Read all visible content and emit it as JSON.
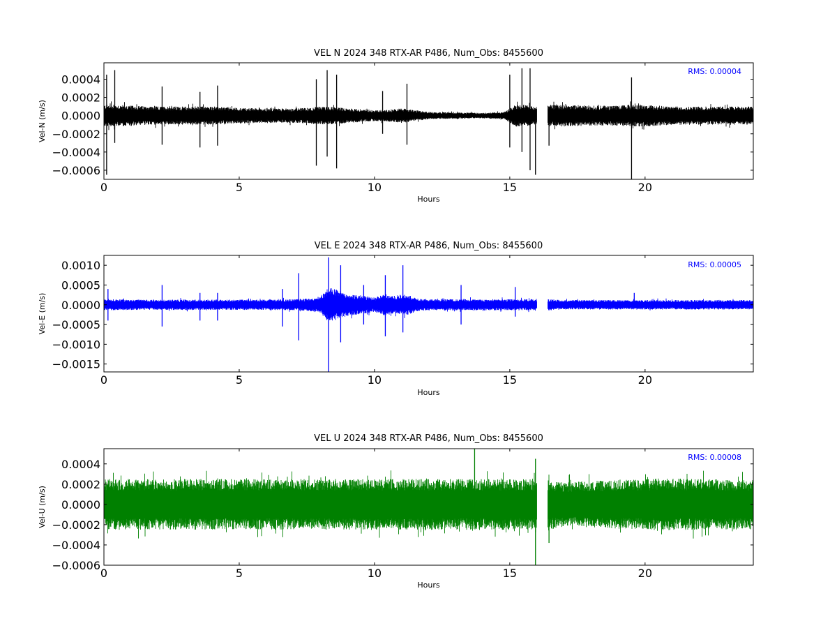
{
  "chart_data": [
    {
      "type": "line",
      "title": "VEL N 2024 348 RTX-AR  P486, Num_Obs: 8455600",
      "xlabel": "Hours",
      "ylabel": "Vel-N (m/s)",
      "xlim": [
        0,
        24
      ],
      "ylim": [
        -0.0007,
        0.00058
      ],
      "xticks": [
        0,
        5,
        10,
        15,
        20
      ],
      "xtick_labels": [
        "0",
        "5",
        "10",
        "15",
        "20"
      ],
      "yticks": [
        -0.0006,
        -0.0004,
        -0.0002,
        0.0,
        0.0002,
        0.0004
      ],
      "ytick_labels": [
        "−0.0006",
        "−0.0004",
        "−0.0002",
        "0.0000",
        "0.0002",
        "0.0004"
      ],
      "annotation": "RMS:  0.00004",
      "color": "#000000",
      "annotation_color": "#0000ff",
      "grid": false,
      "gap": [
        16.0,
        16.4
      ],
      "series": [
        {
          "x": [
            0,
            0.5,
            1,
            2,
            2.5,
            3,
            3.5,
            4,
            5,
            6,
            7,
            7.5,
            8,
            8.5,
            9,
            10,
            10.5,
            11,
            11.5,
            12,
            13,
            14,
            14.8,
            15.2,
            15.6,
            15.95,
            16.45,
            17,
            18,
            19,
            19.5,
            20,
            21,
            22,
            23,
            23.9
          ],
          "amp": [
            0.00012,
            0.00012,
            0.00011,
            0.0001,
            0.0001,
            0.0001,
            0.0001,
            0.0001,
            8.5e-05,
            8e-05,
            8e-05,
            8.5e-05,
            0.0001,
            9.5e-05,
            8e-05,
            6e-05,
            6.5e-05,
            8e-05,
            6e-05,
            4e-05,
            3.5e-05,
            3e-05,
            4e-05,
            0.00012,
            0.00012,
            9e-05,
            0.00012,
            0.00012,
            0.00011,
            0.00011,
            0.00012,
            0.00012,
            0.0001,
            0.0001,
            0.0001,
            0.0001
          ]
        }
      ],
      "spikes": [
        {
          "x": 0.1,
          "y": 0.00045
        },
        {
          "x": 0.1,
          "y": -0.00065
        },
        {
          "x": 0.4,
          "y": 0.0005
        },
        {
          "x": 0.4,
          "y": -0.0003
        },
        {
          "x": 2.15,
          "y": 0.00032
        },
        {
          "x": 2.15,
          "y": -0.00032
        },
        {
          "x": 3.55,
          "y": 0.00026
        },
        {
          "x": 3.55,
          "y": -0.00035
        },
        {
          "x": 4.2,
          "y": 0.00033
        },
        {
          "x": 4.2,
          "y": -0.00033
        },
        {
          "x": 7.85,
          "y": 0.0004
        },
        {
          "x": 7.85,
          "y": -0.00055
        },
        {
          "x": 8.25,
          "y": 0.0005
        },
        {
          "x": 8.25,
          "y": -0.00045
        },
        {
          "x": 8.6,
          "y": 0.00045
        },
        {
          "x": 8.6,
          "y": -0.00058
        },
        {
          "x": 10.3,
          "y": 0.00027
        },
        {
          "x": 10.3,
          "y": -0.0002
        },
        {
          "x": 11.2,
          "y": 0.00035
        },
        {
          "x": 11.2,
          "y": -0.00032
        },
        {
          "x": 15.0,
          "y": 0.00045
        },
        {
          "x": 15.0,
          "y": -0.00035
        },
        {
          "x": 15.45,
          "y": 0.00052
        },
        {
          "x": 15.45,
          "y": -0.0004
        },
        {
          "x": 15.75,
          "y": 0.00052
        },
        {
          "x": 15.75,
          "y": -0.0006
        },
        {
          "x": 15.95,
          "y": -0.00065
        },
        {
          "x": 16.45,
          "y": -0.00033
        },
        {
          "x": 19.5,
          "y": 0.00042
        },
        {
          "x": 19.5,
          "y": -0.0007
        }
      ]
    },
    {
      "type": "line",
      "title": "VEL E 2024 348 RTX-AR  P486, Num_Obs: 8455600",
      "xlabel": "Hours",
      "ylabel": "Vel-E (m/s)",
      "xlim": [
        0,
        24
      ],
      "ylim": [
        -0.0017,
        0.00125
      ],
      "xticks": [
        0,
        5,
        10,
        15,
        20
      ],
      "xtick_labels": [
        "0",
        "5",
        "10",
        "15",
        "20"
      ],
      "yticks": [
        -0.0015,
        -0.001,
        -0.0005,
        0.0,
        0.0005,
        0.001
      ],
      "ytick_labels": [
        "−0.0015",
        "−0.0010",
        "−0.0005",
        "0.0000",
        "0.0005",
        "0.0010"
      ],
      "annotation": "RMS:  0.00005",
      "color": "#0000ff",
      "annotation_color": "#0000ff",
      "grid": false,
      "gap": [
        16.0,
        16.4
      ],
      "series": [
        {
          "x": [
            0,
            1,
            2,
            3,
            4,
            5,
            6,
            7,
            7.5,
            8,
            8.3,
            8.6,
            9,
            9.5,
            10,
            10.4,
            10.8,
            11.2,
            11.6,
            12,
            13,
            14,
            15,
            15.95,
            16.45,
            17,
            18,
            19,
            20,
            21,
            22,
            23,
            23.9
          ],
          "amp": [
            0.00014,
            0.00013,
            0.00013,
            0.00013,
            0.00013,
            0.00013,
            0.00013,
            0.00014,
            0.00016,
            0.0002,
            0.00045,
            0.0004,
            0.00028,
            0.00024,
            0.00018,
            0.00028,
            0.00022,
            0.00026,
            0.00016,
            0.00014,
            0.00014,
            0.00014,
            0.00014,
            0.00014,
            0.00014,
            0.00012,
            0.00012,
            0.00012,
            0.00012,
            0.00012,
            0.00012,
            0.00012,
            0.00012
          ]
        }
      ],
      "spikes": [
        {
          "x": 0.15,
          "y": 0.0004
        },
        {
          "x": 0.15,
          "y": -0.0004
        },
        {
          "x": 2.15,
          "y": 0.0005
        },
        {
          "x": 2.15,
          "y": -0.00055
        },
        {
          "x": 3.55,
          "y": 0.0003
        },
        {
          "x": 3.55,
          "y": -0.0004
        },
        {
          "x": 4.2,
          "y": 0.0003
        },
        {
          "x": 4.2,
          "y": -0.0004
        },
        {
          "x": 6.6,
          "y": 0.0004
        },
        {
          "x": 6.6,
          "y": -0.00055
        },
        {
          "x": 7.2,
          "y": 0.0008
        },
        {
          "x": 7.2,
          "y": -0.0009
        },
        {
          "x": 8.3,
          "y": 0.0012
        },
        {
          "x": 8.3,
          "y": -0.0017
        },
        {
          "x": 8.75,
          "y": 0.001
        },
        {
          "x": 8.75,
          "y": -0.00095
        },
        {
          "x": 9.6,
          "y": 0.0005
        },
        {
          "x": 9.6,
          "y": -0.0005
        },
        {
          "x": 10.4,
          "y": 0.00075
        },
        {
          "x": 10.4,
          "y": -0.0008
        },
        {
          "x": 11.05,
          "y": 0.001
        },
        {
          "x": 11.05,
          "y": -0.0007
        },
        {
          "x": 13.2,
          "y": 0.0005
        },
        {
          "x": 13.2,
          "y": -0.0005
        },
        {
          "x": 15.2,
          "y": 0.00045
        },
        {
          "x": 15.2,
          "y": -0.0003
        },
        {
          "x": 19.6,
          "y": 0.0003
        }
      ]
    },
    {
      "type": "line",
      "title": "VEL U 2024 348 RTX-AR  P486, Num_Obs: 8455600",
      "xlabel": "Hours",
      "ylabel": "Vel-U (m/s)",
      "xlim": [
        0,
        24
      ],
      "ylim": [
        -0.0006,
        0.00055
      ],
      "xticks": [
        0,
        5,
        10,
        15,
        20
      ],
      "xtick_labels": [
        "0",
        "5",
        "10",
        "15",
        "20"
      ],
      "yticks": [
        -0.0006,
        -0.0004,
        -0.0002,
        0.0,
        0.0002,
        0.0004
      ],
      "ytick_labels": [
        "−0.0006",
        "−0.0004",
        "−0.0002",
        "0.0000",
        "0.0002",
        "0.0004"
      ],
      "annotation": "RMS:  0.00008",
      "color": "#008000",
      "annotation_color": "#0000ff",
      "grid": false,
      "gap": [
        16.0,
        16.4
      ],
      "series": [
        {
          "x": [
            0,
            1,
            2,
            3,
            4,
            5,
            6,
            7,
            8,
            9,
            10,
            11,
            12,
            13,
            14,
            15,
            15.95,
            16.45,
            17,
            18,
            19,
            20,
            21,
            22,
            23,
            23.9
          ],
          "amp": [
            0.00025,
            0.00025,
            0.00025,
            0.00025,
            0.00025,
            0.00025,
            0.00025,
            0.00025,
            0.00025,
            0.00025,
            0.00025,
            0.00025,
            0.00025,
            0.00025,
            0.00025,
            0.00025,
            0.00025,
            0.00025,
            0.00022,
            0.00023,
            0.00024,
            0.00025,
            0.00026,
            0.00025,
            0.00025,
            0.00025
          ]
        }
      ],
      "spikes": [
        {
          "x": 13.7,
          "y": 0.00055
        },
        {
          "x": 15.95,
          "y": 0.00045
        },
        {
          "x": 15.95,
          "y": -0.0006
        },
        {
          "x": 16.45,
          "y": -0.00038
        }
      ]
    }
  ]
}
